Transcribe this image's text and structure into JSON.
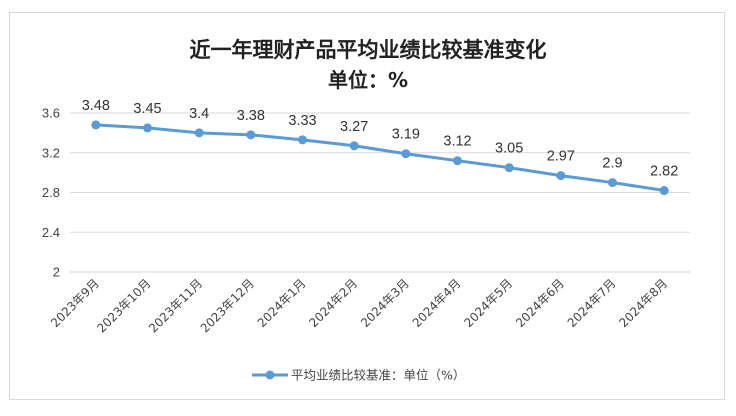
{
  "chart_data": {
    "type": "line",
    "title": "近一年理财产品平均业绩比较基准变化",
    "subtitle": "单位：%",
    "categories": [
      "2023年9月",
      "2023年10月",
      "2023年11月",
      "2023年12月",
      "2024年1月",
      "2024年2月",
      "2024年3月",
      "2024年4月",
      "2024年5月",
      "2024年6月",
      "2024年7月",
      "2024年8月"
    ],
    "series": [
      {
        "name": "平均业绩比较基准：单位（%）",
        "values": [
          3.48,
          3.45,
          3.4,
          3.38,
          3.33,
          3.27,
          3.19,
          3.12,
          3.05,
          2.97,
          2.9,
          2.82
        ],
        "color": "#5b9bd5"
      }
    ],
    "ylim": [
      2,
      3.6
    ],
    "yticks": [
      "2",
      "2.4",
      "2.8",
      "3.2",
      "3.6"
    ],
    "data_labels": [
      "3.48",
      "3.45",
      "3.4",
      "3.38",
      "3.33",
      "3.27",
      "3.19",
      "3.12",
      "3.05",
      "2.97",
      "2.9",
      "2.82"
    ],
    "grid": true,
    "legend": "bottom"
  }
}
